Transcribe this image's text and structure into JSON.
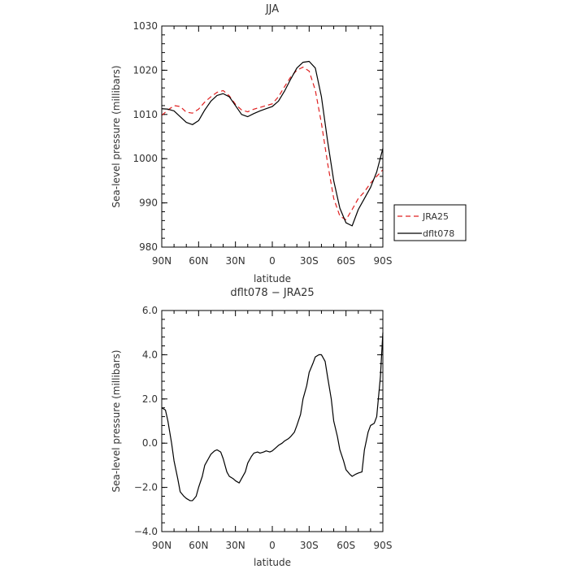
{
  "chart_data": [
    {
      "type": "line",
      "title": "JJA",
      "xlabel": "latitude",
      "ylabel": "Sea-level pressure (millibars)",
      "xlim": [
        90,
        -90
      ],
      "ylim": [
        980,
        1030
      ],
      "x_ticks": [
        90,
        60,
        30,
        0,
        -30,
        -60,
        -90
      ],
      "x_tick_labels": [
        "90N",
        "60N",
        "30N",
        "0",
        "30S",
        "60S",
        "90S"
      ],
      "y_ticks": [
        980,
        990,
        1000,
        1010,
        1020,
        1030
      ],
      "y_tick_labels": [
        "980",
        "990",
        "1000",
        "1010",
        "1020",
        "1030"
      ],
      "legend": {
        "placement": "right",
        "entries": [
          "JRA25",
          "dflt078"
        ]
      },
      "series": [
        {
          "name": "JRA25",
          "color": "#e02020",
          "dash": "dashed",
          "x": [
            90,
            85,
            80,
            75,
            70,
            65,
            60,
            55,
            50,
            45,
            40,
            35,
            30,
            25,
            20,
            15,
            10,
            5,
            0,
            -5,
            -10,
            -15,
            -20,
            -25,
            -30,
            -35,
            -40,
            -45,
            -50,
            -55,
            -60,
            -65,
            -70,
            -75,
            -80,
            -85,
            -90
          ],
          "values": [
            1009.8,
            1011.0,
            1012.0,
            1011.8,
            1010.5,
            1010.3,
            1011.2,
            1012.8,
            1014.0,
            1015.0,
            1015.4,
            1014.2,
            1012.3,
            1011.0,
            1010.6,
            1011.2,
            1011.6,
            1012.0,
            1012.4,
            1014.0,
            1016.3,
            1018.5,
            1020.0,
            1020.7,
            1019.8,
            1015.5,
            1008.0,
            999.0,
            991.0,
            987.0,
            986.2,
            988.5,
            991.0,
            992.5,
            994.5,
            996.0,
            997.5
          ]
        },
        {
          "name": "dflt078",
          "color": "#000000",
          "dash": "solid",
          "x": [
            90,
            85,
            80,
            75,
            70,
            65,
            60,
            55,
            50,
            45,
            40,
            35,
            30,
            25,
            20,
            15,
            10,
            5,
            0,
            -5,
            -10,
            -15,
            -20,
            -25,
            -30,
            -35,
            -40,
            -45,
            -50,
            -55,
            -60,
            -65,
            -70,
            -75,
            -80,
            -85,
            -90
          ],
          "values": [
            1011.3,
            1011.2,
            1010.8,
            1009.5,
            1008.2,
            1007.7,
            1008.6,
            1011.0,
            1013.0,
            1014.3,
            1014.7,
            1014.0,
            1012.0,
            1010.0,
            1009.5,
            1010.2,
            1010.8,
            1011.3,
            1011.8,
            1013.0,
            1015.3,
            1018.0,
            1020.5,
            1021.8,
            1022.0,
            1020.5,
            1014.0,
            1004.0,
            995.0,
            988.8,
            985.5,
            984.8,
            988.5,
            991.0,
            993.5,
            997.0,
            1002.3
          ]
        }
      ]
    },
    {
      "type": "line",
      "title": "dflt078 − JRA25",
      "xlabel": "latitude",
      "ylabel": "Sea-level pressure (millibars)",
      "xlim": [
        90,
        -90
      ],
      "ylim": [
        -4,
        6
      ],
      "x_ticks": [
        90,
        60,
        30,
        0,
        -30,
        -60,
        -90
      ],
      "x_tick_labels": [
        "90N",
        "60N",
        "30N",
        "0",
        "30S",
        "60S",
        "90S"
      ],
      "y_ticks": [
        -4,
        -2,
        0,
        2,
        4,
        6
      ],
      "y_tick_labels": [
        "−4.0",
        "−2.0",
        "0.0",
        "2.0",
        "4.0",
        "6.0"
      ],
      "series": [
        {
          "color": "#000000",
          "dash": "solid",
          "x": [
            90,
            87,
            85,
            82,
            80,
            77,
            75,
            72,
            70,
            67,
            65,
            62,
            60,
            57,
            55,
            52,
            50,
            47,
            45,
            42,
            40,
            37,
            35,
            32,
            30,
            27,
            25,
            22,
            20,
            17,
            15,
            12,
            10,
            7,
            5,
            2,
            0,
            -3,
            -5,
            -8,
            -10,
            -13,
            -15,
            -18,
            -20,
            -23,
            -25,
            -28,
            -30,
            -33,
            -35,
            -38,
            -40,
            -43,
            -45,
            -48,
            -50,
            -53,
            -55,
            -58,
            -60,
            -63,
            -65,
            -68,
            -70,
            -73,
            -75,
            -78,
            -80,
            -83,
            -85,
            -88,
            -90
          ],
          "values": [
            1.6,
            1.5,
            1.0,
            0.0,
            -0.8,
            -1.6,
            -2.2,
            -2.4,
            -2.5,
            -2.6,
            -2.6,
            -2.4,
            -2.0,
            -1.5,
            -1.0,
            -0.7,
            -0.5,
            -0.35,
            -0.3,
            -0.4,
            -0.7,
            -1.3,
            -1.5,
            -1.6,
            -1.7,
            -1.8,
            -1.6,
            -1.3,
            -0.9,
            -0.6,
            -0.45,
            -0.4,
            -0.45,
            -0.4,
            -0.35,
            -0.4,
            -0.35,
            -0.2,
            -0.1,
            0.0,
            0.1,
            0.2,
            0.3,
            0.5,
            0.8,
            1.3,
            2.0,
            2.6,
            3.2,
            3.6,
            3.9,
            4.0,
            4.0,
            3.7,
            3.0,
            2.0,
            1.0,
            0.3,
            -0.3,
            -0.8,
            -1.2,
            -1.4,
            -1.5,
            -1.4,
            -1.35,
            -1.3,
            -0.3,
            0.5,
            0.8,
            0.9,
            1.2,
            3.0,
            5.0
          ]
        }
      ]
    }
  ]
}
